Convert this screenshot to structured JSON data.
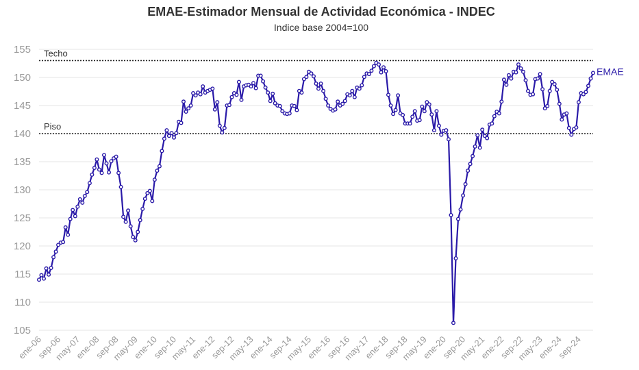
{
  "chart_data": {
    "type": "line",
    "title": "EMAE-Estimador Mensual de Actividad Económica - INDEC",
    "subtitle": "Indice base 2004=100",
    "series_label": "EMAE",
    "series_color": "#2a1aa8",
    "ylim": [
      105,
      155
    ],
    "yticks": [
      105,
      110,
      115,
      120,
      125,
      130,
      135,
      140,
      145,
      150,
      155
    ],
    "grid": true,
    "reference_lines": [
      {
        "label": "Techo",
        "value": 153
      },
      {
        "label": "Piso",
        "value": 140
      }
    ],
    "x_tick_labels": [
      "ene-06",
      "sep-06",
      "may-07",
      "ene-08",
      "sep-08",
      "may-09",
      "ene-10",
      "sep-10",
      "may-11",
      "ene-12",
      "sep-12",
      "may-13",
      "ene-14",
      "sep-14",
      "may-15",
      "ene-16",
      "sep-16",
      "may-17",
      "ene-18",
      "sep-18",
      "may-19",
      "ene-20",
      "sep-20",
      "may-21",
      "ene-22",
      "sep-22",
      "may-23",
      "ene-24",
      "sep-24"
    ],
    "x_start": "ene-06",
    "x_end": "nov-24",
    "values": [
      114.0,
      114.8,
      114.2,
      116.0,
      114.9,
      116.1,
      118.0,
      119.0,
      120.2,
      120.6,
      120.7,
      123.3,
      122.0,
      124.8,
      126.4,
      125.3,
      127.0,
      128.3,
      127.7,
      128.9,
      129.6,
      131.2,
      132.7,
      133.9,
      135.4,
      133.6,
      133.0,
      136.2,
      134.7,
      133.1,
      135.1,
      135.6,
      135.9,
      133.0,
      130.5,
      125.2,
      124.3,
      126.3,
      123.5,
      121.6,
      121.0,
      122.5,
      124.6,
      126.6,
      128.4,
      129.4,
      129.8,
      128.0,
      131.8,
      133.4,
      134.2,
      136.9,
      139.1,
      140.6,
      139.6,
      140.1,
      139.3,
      140.1,
      142.1,
      141.9,
      145.7,
      143.9,
      144.5,
      145.0,
      147.2,
      146.8,
      147.3,
      147.0,
      148.4,
      147.3,
      147.6,
      147.8,
      148.0,
      144.3,
      145.6,
      141.4,
      140.2,
      141.0,
      145.0,
      145.1,
      146.5,
      147.2,
      146.9,
      149.2,
      146.0,
      148.4,
      148.6,
      148.7,
      148.4,
      149.0,
      148.1,
      150.3,
      150.3,
      149.3,
      148.2,
      147.3,
      145.8,
      147.1,
      145.4,
      145.0,
      144.9,
      144.0,
      143.6,
      143.5,
      143.6,
      145.0,
      144.9,
      144.2,
      147.6,
      147.3,
      149.7,
      150.1,
      151.0,
      150.7,
      150.2,
      148.9,
      148.0,
      148.9,
      147.6,
      146.2,
      145.0,
      144.4,
      144.1,
      144.3,
      145.7,
      145.0,
      145.3,
      145.8,
      147.0,
      146.8,
      147.6,
      146.5,
      148.2,
      148.0,
      148.6,
      150.1,
      150.7,
      150.6,
      151.2,
      152.0,
      152.6,
      152.3,
      150.9,
      151.8,
      151.1,
      146.9,
      145.0,
      143.5,
      144.2,
      146.8,
      143.6,
      143.3,
      141.8,
      141.8,
      141.8,
      143.0,
      144.0,
      142.3,
      142.4,
      144.8,
      144.0,
      145.6,
      145.2,
      143.4,
      140.6,
      144.0,
      141.4,
      139.8,
      140.5,
      140.6,
      139.0,
      125.5,
      106.3,
      117.8,
      124.8,
      126.5,
      129.0,
      131.0,
      133.4,
      134.6,
      136.0,
      137.7,
      139.7,
      137.5,
      140.7,
      139.6,
      139.2,
      141.6,
      141.8,
      143.1,
      143.9,
      143.6,
      145.7,
      149.6,
      148.7,
      150.4,
      149.8,
      151.0,
      150.9,
      152.3,
      151.6,
      151.0,
      149.5,
      147.6,
      146.9,
      147.0,
      149.7,
      149.8,
      150.6,
      147.9,
      144.5,
      144.9,
      147.6,
      149.2,
      148.8,
      147.8,
      145.3,
      142.5,
      143.4,
      143.6,
      141.0,
      139.8,
      140.8,
      141.1,
      145.6,
      147.2,
      147.0,
      147.4,
      148.5,
      149.8,
      150.8
    ]
  }
}
